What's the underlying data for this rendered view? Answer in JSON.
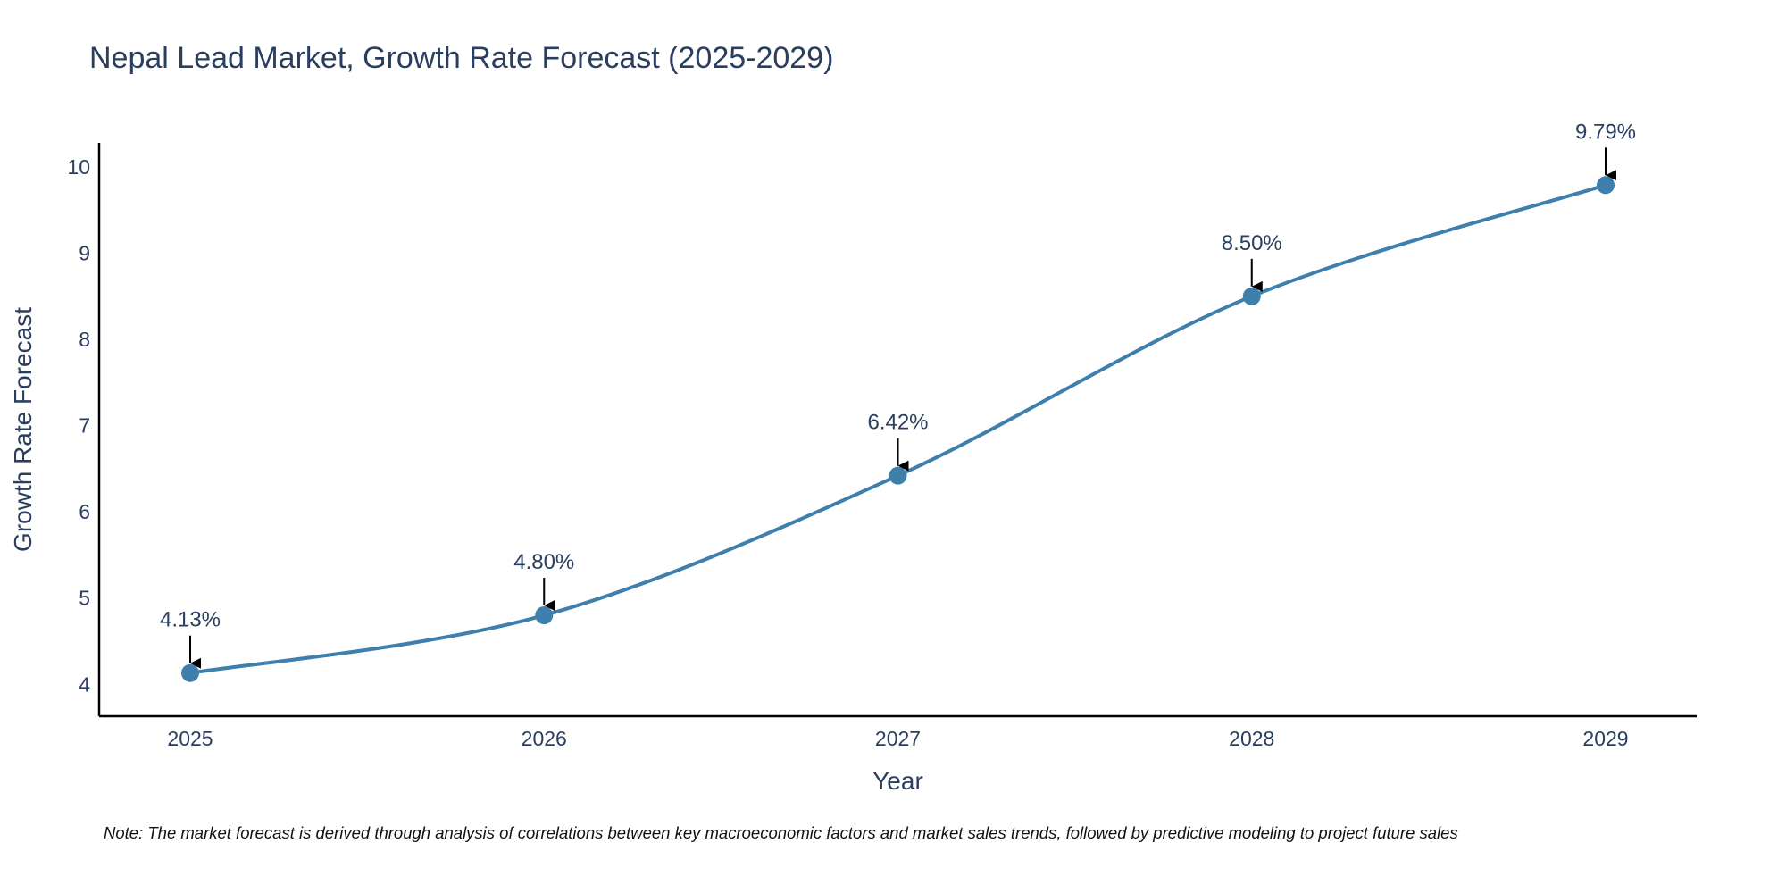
{
  "chart_data": {
    "type": "line",
    "title": "Nepal Lead Market, Growth Rate Forecast (2025-2029)",
    "xlabel": "Year",
    "ylabel": "Growth Rate Forecast",
    "categories": [
      "2025",
      "2026",
      "2027",
      "2028",
      "2029"
    ],
    "series": [
      {
        "name": "Growth Rate Forecast",
        "values": [
          4.13,
          4.8,
          6.42,
          8.5,
          9.79
        ],
        "data_labels": [
          "4.13%",
          "4.80%",
          "6.42%",
          "8.50%",
          "9.79%"
        ]
      }
    ],
    "yticks": [
      4,
      5,
      6,
      7,
      8,
      9,
      10
    ],
    "ylim": [
      3.63,
      10.28
    ],
    "grid": false,
    "line_shape": "spline",
    "marker": "circle",
    "annotation_arrows": true,
    "colors": {
      "line": "#3e7fac",
      "marker": "#3e7fac",
      "axis": "#000000",
      "text": "#2a3f5f",
      "arrow": "#000000"
    }
  },
  "note": "Note: The market forecast is derived through analysis of correlations between key macroeconomic factors and market sales trends, followed by predictive modeling to project future sales"
}
